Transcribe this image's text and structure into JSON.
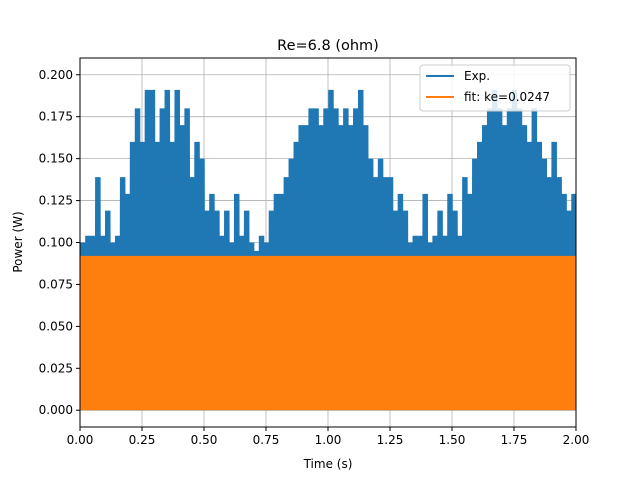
{
  "chart_data": {
    "type": "line",
    "title": "Re=6.8 (ohm)",
    "xlabel": "Time (s)",
    "ylabel": "Power (W)",
    "xlim": [
      0.0,
      2.0
    ],
    "ylim": [
      -0.01,
      0.21
    ],
    "grid": true,
    "legend_position": "top-right",
    "x_ticks": [
      0.0,
      0.25,
      0.5,
      0.75,
      1.0,
      1.25,
      1.5,
      1.75,
      2.0
    ],
    "x_tick_labels": [
      "0.00",
      "0.25",
      "0.50",
      "0.75",
      "1.00",
      "1.25",
      "1.50",
      "1.75",
      "2.00"
    ],
    "y_ticks": [
      0.0,
      0.025,
      0.05,
      0.075,
      0.1,
      0.125,
      0.15,
      0.175,
      0.2
    ],
    "y_tick_labels": [
      "0.000",
      "0.025",
      "0.050",
      "0.075",
      "0.100",
      "0.125",
      "0.150",
      "0.175",
      "0.200"
    ],
    "series": [
      {
        "name": "Exp.",
        "color": "#1f77b4",
        "peaks": {
          "x": [
            0.0,
            0.02,
            0.04,
            0.06,
            0.08,
            0.1,
            0.12,
            0.14,
            0.16,
            0.18,
            0.2,
            0.22,
            0.24,
            0.26,
            0.28,
            0.3,
            0.32,
            0.34,
            0.36,
            0.38,
            0.4,
            0.42,
            0.44,
            0.46,
            0.48,
            0.5,
            0.52,
            0.54,
            0.56,
            0.58,
            0.6,
            0.62,
            0.64,
            0.66,
            0.68,
            0.7,
            0.72,
            0.74,
            0.76,
            0.78,
            0.8,
            0.82,
            0.84,
            0.86,
            0.88,
            0.9,
            0.92,
            0.94,
            0.96,
            0.98,
            1.0,
            1.02,
            1.04,
            1.06,
            1.08,
            1.1,
            1.12,
            1.14,
            1.16,
            1.18,
            1.2,
            1.22,
            1.24,
            1.26,
            1.28,
            1.3,
            1.32,
            1.34,
            1.36,
            1.38,
            1.4,
            1.42,
            1.44,
            1.46,
            1.48,
            1.5,
            1.52,
            1.54,
            1.56,
            1.58,
            1.6,
            1.62,
            1.64,
            1.66,
            1.68,
            1.7,
            1.72,
            1.74,
            1.76,
            1.78,
            1.8,
            1.82,
            1.84,
            1.86,
            1.88,
            1.9,
            1.92,
            1.94,
            1.96,
            1.98,
            2.0
          ],
          "y": [
            0.1,
            0.104,
            0.104,
            0.139,
            0.104,
            0.119,
            0.1,
            0.104,
            0.139,
            0.129,
            0.16,
            0.18,
            0.16,
            0.191,
            0.191,
            0.16,
            0.18,
            0.191,
            0.16,
            0.191,
            0.17,
            0.18,
            0.139,
            0.16,
            0.15,
            0.119,
            0.129,
            0.119,
            0.104,
            0.119,
            0.1,
            0.129,
            0.104,
            0.119,
            0.1,
            0.095,
            0.104,
            0.1,
            0.119,
            0.129,
            0.129,
            0.139,
            0.15,
            0.16,
            0.17,
            0.17,
            0.18,
            0.18,
            0.17,
            0.18,
            0.191,
            0.18,
            0.17,
            0.18,
            0.17,
            0.18,
            0.191,
            0.17,
            0.15,
            0.139,
            0.15,
            0.139,
            0.139,
            0.119,
            0.129,
            0.119,
            0.1,
            0.104,
            0.104,
            0.129,
            0.1,
            0.104,
            0.119,
            0.104,
            0.129,
            0.119,
            0.104,
            0.139,
            0.129,
            0.15,
            0.16,
            0.17,
            0.18,
            0.191,
            0.18,
            0.17,
            0.18,
            0.191,
            0.18,
            0.17,
            0.16,
            0.18,
            0.16,
            0.15,
            0.139,
            0.16,
            0.139,
            0.129,
            0.119,
            0.129,
            0.1
          ]
        }
      },
      {
        "name": "fit: ke=0.0247",
        "color": "#ff7f0e",
        "amplitude": 0.092,
        "min": 0.0
      }
    ]
  }
}
